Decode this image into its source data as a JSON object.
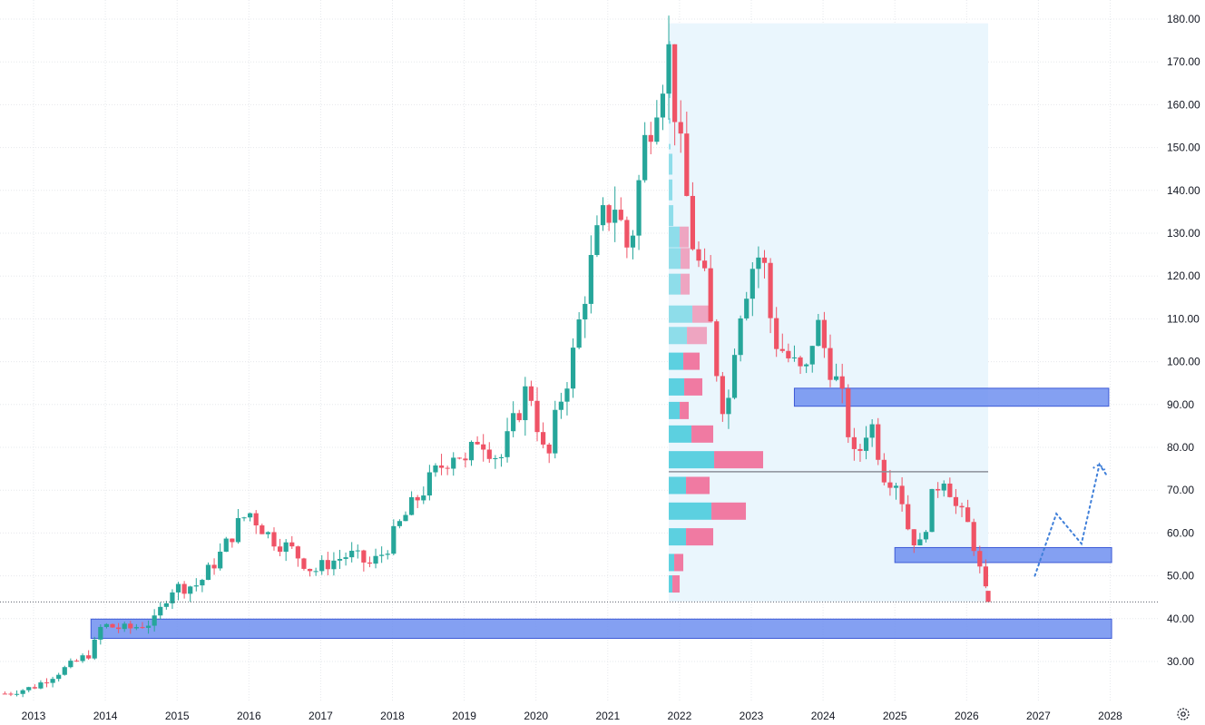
{
  "chart_data": {
    "type": "candlestick",
    "title": "",
    "xlabel": "",
    "ylabel": "",
    "ylim": [
      22,
      182
    ],
    "xlim": [
      2012.55,
      2028.15
    ],
    "grid": true,
    "y_ticks": [
      "30.00",
      "40.00",
      "50.00",
      "60.00",
      "70.00",
      "80.00",
      "90.00",
      "100.00",
      "110.00",
      "120.00",
      "130.00",
      "140.00",
      "150.00",
      "160.00",
      "170.00",
      "180.00"
    ],
    "x_ticks": [
      "2013",
      "2014",
      "2015",
      "2016",
      "2017",
      "2018",
      "2019",
      "2020",
      "2021",
      "2022",
      "2023",
      "2024",
      "2025",
      "2026",
      "2027",
      "2028"
    ],
    "colors": {
      "up": "#26a69a",
      "down": "#ef5366",
      "zone": "#6f8ff0",
      "zone_border": "#3d5ad6",
      "projection": "#3f7fd9",
      "profile_up": "#5cd0e0",
      "profile_down": "#f07aa2",
      "vp_range": "#eaf6fd"
    },
    "last_price": 43.9,
    "last_price_line": true,
    "candle_keyframes": [
      [
        2012.6,
        22.5
      ],
      [
        2013.0,
        24
      ],
      [
        2013.5,
        29
      ],
      [
        2013.8,
        32
      ],
      [
        2013.95,
        38.5
      ],
      [
        2014.3,
        37.5
      ],
      [
        2014.7,
        39.5
      ],
      [
        2014.9,
        47
      ],
      [
        2015.3,
        48
      ],
      [
        2015.6,
        55
      ],
      [
        2015.85,
        62
      ],
      [
        2016.0,
        65
      ],
      [
        2016.3,
        59
      ],
      [
        2016.6,
        56
      ],
      [
        2016.9,
        51
      ],
      [
        2017.1,
        53
      ],
      [
        2017.4,
        55
      ],
      [
        2017.7,
        52.5
      ],
      [
        2017.9,
        56
      ],
      [
        2018.1,
        62
      ],
      [
        2018.3,
        67
      ],
      [
        2018.6,
        74
      ],
      [
        2018.9,
        80
      ],
      [
        2019.0,
        75
      ],
      [
        2019.2,
        83
      ],
      [
        2019.5,
        77
      ],
      [
        2019.7,
        86
      ],
      [
        2019.9,
        95
      ],
      [
        2020.15,
        75
      ],
      [
        2020.3,
        89
      ],
      [
        2020.5,
        100
      ],
      [
        2020.7,
        118
      ],
      [
        2020.9,
        132
      ],
      [
        2021.1,
        137
      ],
      [
        2021.3,
        125
      ],
      [
        2021.5,
        150
      ],
      [
        2021.7,
        164
      ],
      [
        2021.85,
        172
      ],
      [
        2022.0,
        150
      ],
      [
        2022.2,
        126
      ],
      [
        2022.35,
        118
      ],
      [
        2022.5,
        100
      ],
      [
        2022.65,
        86
      ],
      [
        2022.8,
        110
      ],
      [
        2023.0,
        122
      ],
      [
        2023.15,
        126
      ],
      [
        2023.3,
        106
      ],
      [
        2023.55,
        100
      ],
      [
        2023.75,
        96
      ],
      [
        2023.9,
        110
      ],
      [
        2024.0,
        104
      ],
      [
        2024.25,
        92
      ],
      [
        2024.45,
        76
      ],
      [
        2024.65,
        87
      ],
      [
        2024.85,
        74
      ],
      [
        2025.05,
        72
      ],
      [
        2025.2,
        60
      ],
      [
        2025.35,
        57
      ],
      [
        2025.55,
        70
      ],
      [
        2025.7,
        74
      ],
      [
        2025.85,
        66
      ],
      [
        2026.05,
        61
      ],
      [
        2026.2,
        50
      ],
      [
        2026.3,
        44
      ]
    ],
    "volume_profile": [
      {
        "price": 111,
        "up": 26,
        "down": 22
      },
      {
        "price": 106,
        "up": 20,
        "down": 22
      },
      {
        "price": 100,
        "up": 16,
        "down": 18
      },
      {
        "price": 94,
        "up": 17,
        "down": 20
      },
      {
        "price": 88.5,
        "up": 12,
        "down": 10
      },
      {
        "price": 83,
        "up": 25,
        "down": 24
      },
      {
        "price": 77,
        "up": 50,
        "down": 54
      },
      {
        "price": 71,
        "up": 19,
        "down": 26
      },
      {
        "price": 65,
        "up": 47,
        "down": 38
      },
      {
        "price": 59,
        "up": 19,
        "down": 30
      },
      {
        "price": 53,
        "up": 6,
        "down": 10
      },
      {
        "price": 48,
        "up": 4,
        "down": 8
      },
      {
        "price": 124,
        "up": 13,
        "down": 10
      },
      {
        "price": 118,
        "up": 13,
        "down": 10
      },
      {
        "price": 129,
        "up": 12,
        "down": 10
      },
      {
        "price": 134,
        "up": 5,
        "down": 0
      },
      {
        "price": 140,
        "up": 4,
        "down": 0
      },
      {
        "price": 146,
        "up": 4,
        "down": 0
      }
    ],
    "volume_profile_range": {
      "x": [
        2021.85,
        2026.3
      ],
      "y": [
        44,
        179
      ]
    },
    "poc_price": 74.3,
    "zones": [
      {
        "x": [
          2023.6,
          2027.98
        ],
        "y": [
          89.6,
          93.8
        ]
      },
      {
        "x": [
          2025.0,
          2028.02
        ],
        "y": [
          53.1,
          56.6
        ]
      },
      {
        "x": [
          2013.8,
          2028.02
        ],
        "y": [
          35.4,
          39.9
        ]
      }
    ],
    "projection": [
      [
        2026.95,
        50
      ],
      [
        2027.25,
        64.5
      ],
      [
        2027.6,
        57.5
      ],
      [
        2027.85,
        76
      ],
      [
        2027.95,
        73.5
      ]
    ]
  }
}
